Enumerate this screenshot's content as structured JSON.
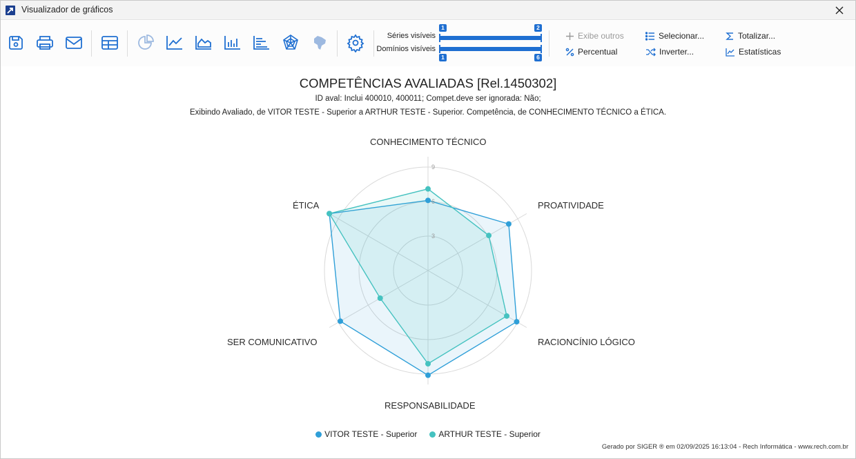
{
  "window": {
    "title": "Visualizador de gráficos"
  },
  "toolbar": {
    "buttons": [
      {
        "name": "save-icon"
      },
      {
        "name": "print-icon"
      },
      {
        "name": "email-icon"
      },
      {
        "name": "table-icon"
      },
      {
        "name": "pie-chart-icon"
      },
      {
        "name": "line-chart-icon"
      },
      {
        "name": "area-chart-icon"
      },
      {
        "name": "bar-chart-icon"
      },
      {
        "name": "horizontal-bar-chart-icon"
      },
      {
        "name": "radar-chart-icon"
      },
      {
        "name": "map-icon"
      },
      {
        "name": "settings-icon"
      }
    ],
    "series_label": "Séries visíveis",
    "series_min": "1",
    "series_max": "2",
    "domains_label": "Domínios visíveis",
    "domains_min": "1",
    "domains_max": "6",
    "exibe_outros": "Exibe outros",
    "percentual": "Percentual",
    "selecionar": "Selecionar...",
    "inverter": "Inverter...",
    "totalizar": "Totalizar...",
    "estatisticas": "Estatísticas"
  },
  "colors": {
    "accent": "#1f6fd1",
    "series1": "#2f9fd8",
    "series2": "#45c2c0"
  },
  "chart_data": {
    "type": "radar",
    "title": "COMPETÊNCIAS AVALIADAS [Rel.1450302]",
    "subtitle1": "ID aval: Inclui 400010, 400011; Compet.deve ser ignorada: Não;",
    "subtitle2": "Exibindo Avaliado, de VITOR TESTE - Superior a ARTHUR TESTE - Superior. Competência, de CONHECIMENTO TÉCNICO a ÉTICA.",
    "categories": [
      "CONHECIMENTO TÉCNICO",
      "PROATIVIDADE",
      "RACIONCÍNIO LÓGICO",
      "RESPONSABILIDADE",
      "SER COMUNICATIVO",
      "ÉTICA"
    ],
    "rmax": 9,
    "ticks": [
      "3",
      "6",
      "9"
    ],
    "grid": true,
    "series": [
      {
        "name": "VITOR TESTE - Superior",
        "values": [
          6.1,
          8.1,
          8.9,
          9.1,
          8.8,
          9.9
        ]
      },
      {
        "name": "ARTHUR TESTE - Superior",
        "values": [
          7.1,
          6.1,
          7.9,
          8.1,
          4.8,
          9.9
        ]
      }
    ],
    "legend": "bottom"
  },
  "footer": {
    "text": "Gerado por SIGER ® em 02/09/2025 16:13:04 - Rech Informática - www.rech.com.br"
  }
}
